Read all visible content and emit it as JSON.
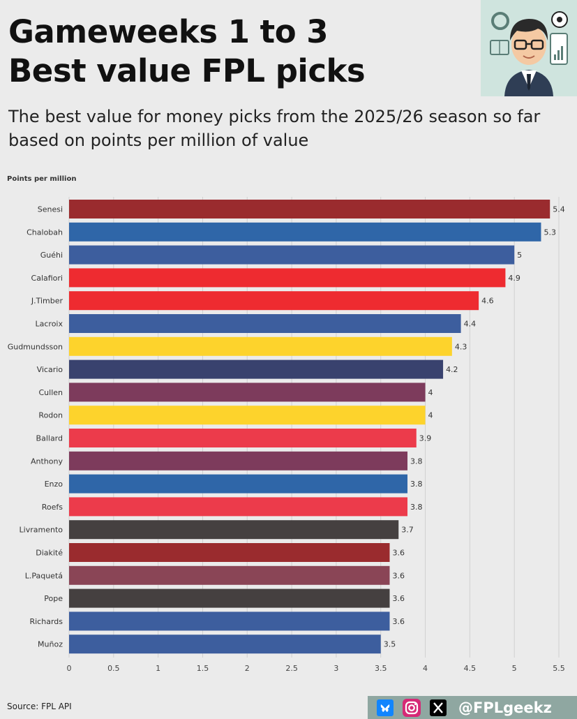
{
  "header": {
    "title_line1": "Gameweeks 1 to 3",
    "title_line2": "Best value FPL picks",
    "subtitle_line1": "The best value for money picks from the 2025/26 season so far",
    "subtitle_line2": "based on points per million of value"
  },
  "footer": {
    "source": "Source: FPL API",
    "handle": "@FPLgeekz",
    "icons": [
      "bluesky-icon",
      "instagram-icon",
      "x-icon"
    ]
  },
  "chart_data": {
    "type": "bar",
    "orientation": "horizontal",
    "ylabel": "Points per million",
    "xlim": [
      0,
      5.5
    ],
    "xticks": [
      "0",
      "0.5",
      "1",
      "1.5",
      "2",
      "2.5",
      "3",
      "3.5",
      "4",
      "4.5",
      "5",
      "5.5"
    ],
    "grid": true,
    "categories": [
      "Senesi",
      "Chalobah",
      "Guéhi",
      "Calafiori",
      "J.Timber",
      "Lacroix",
      "Gudmundsson",
      "Vicario",
      "Cullen",
      "Rodon",
      "Ballard",
      "Anthony",
      "Enzo",
      "Roefs",
      "Livramento",
      "Diakité",
      "L.Paquetá",
      "Pope",
      "Richards",
      "Muñoz"
    ],
    "values": [
      5.4,
      5.3,
      5,
      4.9,
      4.6,
      4.4,
      4.3,
      4.2,
      4,
      4,
      3.9,
      3.8,
      3.8,
      3.8,
      3.7,
      3.6,
      3.6,
      3.6,
      3.6,
      3.5
    ],
    "value_labels": [
      "5.4",
      "5.3",
      "5",
      "4.9",
      "4.6",
      "4.4",
      "4.3",
      "4.2",
      "4",
      "4",
      "3.9",
      "3.8",
      "3.8",
      "3.8",
      "3.7",
      "3.6",
      "3.6",
      "3.6",
      "3.6",
      "3.5"
    ],
    "colors": [
      "#9a2b2e",
      "#2f66a8",
      "#3d5e9e",
      "#ee2b30",
      "#ee2b30",
      "#3d5e9e",
      "#fdd32c",
      "#39426e",
      "#7d3b5c",
      "#fdd32c",
      "#ec3b4b",
      "#7d3b5c",
      "#2f66a8",
      "#ec3b4b",
      "#454040",
      "#9a2b2e",
      "#8a4556",
      "#454040",
      "#3d5e9e",
      "#3d5e9e"
    ]
  }
}
